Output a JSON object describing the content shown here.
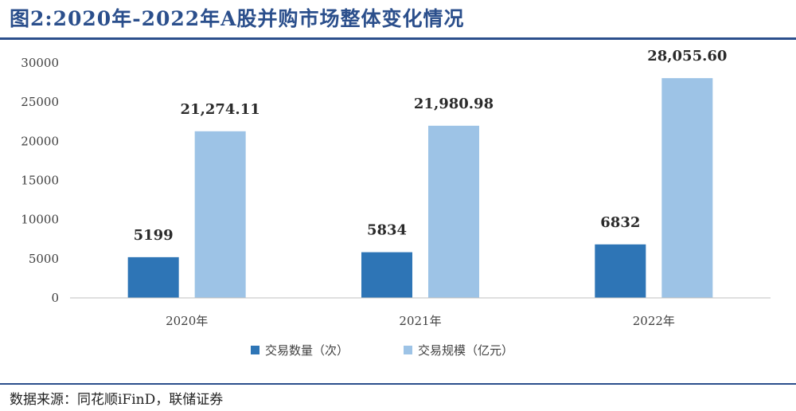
{
  "title": "图2:2020年-2022年A股并购市场整体变化情况",
  "source": "数据来源：同花顺iFinD，联储证券",
  "colors": {
    "title": "#2b4f8c",
    "series_1": "#2e75b6",
    "series_2": "#9dc3e6",
    "axis": "#bfbfbf"
  },
  "chart_data": {
    "type": "bar",
    "categories": [
      "2020年",
      "2021年",
      "2022年"
    ],
    "series": [
      {
        "name": "交易数量（次）",
        "values": [
          5199,
          5834,
          6832
        ],
        "labels": [
          "5199",
          "5834",
          "6832"
        ]
      },
      {
        "name": "交易规模（亿元）",
        "values": [
          21274.11,
          21980.98,
          28055.6
        ],
        "labels": [
          "21,274.11",
          "21,980.98",
          "28,055.60"
        ]
      }
    ],
    "yticks": [
      "0",
      "5000",
      "10000",
      "15000",
      "20000",
      "25000",
      "30000"
    ],
    "ylim": [
      0,
      30000
    ],
    "grid": false,
    "legend_position": "bottom"
  }
}
